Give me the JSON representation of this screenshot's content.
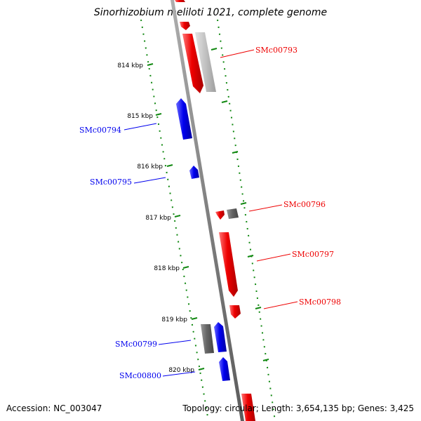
{
  "title": "Sinorhizobium meliloti 1021, complete genome",
  "footer": {
    "accession": "Accession: NC_003047",
    "summary": "Topology: circular; Length: 3,654,135 bp; Genes: 3,425"
  },
  "scale_labels": [
    "814 kbp",
    "815 kbp",
    "816 kbp",
    "817 kbp",
    "818 kbp",
    "819 kbp",
    "820 kbp"
  ],
  "gene_labels": [
    {
      "text": "SMc00793",
      "strand": "forward"
    },
    {
      "text": "SMc00794",
      "strand": "reverse"
    },
    {
      "text": "SMc00795",
      "strand": "reverse"
    },
    {
      "text": "SMc00796",
      "strand": "forward"
    },
    {
      "text": "SMc00797",
      "strand": "forward"
    },
    {
      "text": "SMc00798",
      "strand": "forward"
    },
    {
      "text": "SMc00799",
      "strand": "reverse"
    },
    {
      "text": "SMc00800",
      "strand": "reverse"
    }
  ],
  "colors": {
    "forward_gene": "#ee0000",
    "reverse_gene": "#0000ee",
    "other_feature": "#666666",
    "pseudo_feature": "#bbbbbb",
    "backbone": "#808080",
    "tick": "#118811"
  }
}
